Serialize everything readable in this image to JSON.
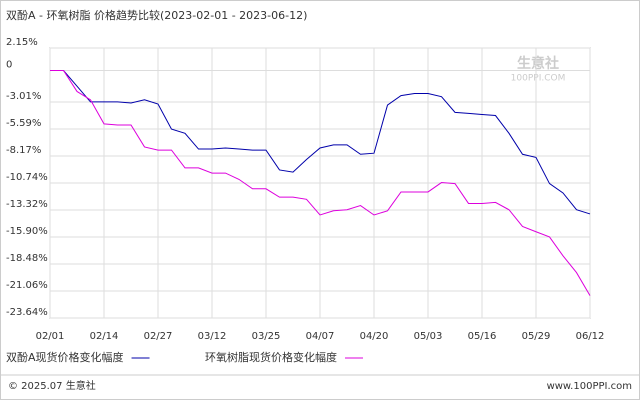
{
  "chart_data": {
    "type": "line",
    "title": "双酚A - 环氧树脂 价格趋势比较(2023-02-01 - 2023-06-12)",
    "categories": [
      "02/01",
      null,
      null,
      null,
      "02/14",
      null,
      null,
      null,
      "02/27",
      null,
      null,
      null,
      "03/12",
      null,
      null,
      null,
      "03/25",
      null,
      null,
      null,
      "04/07",
      null,
      null,
      null,
      "04/20",
      null,
      null,
      null,
      "05/03",
      null,
      null,
      null,
      "05/16",
      null,
      null,
      null,
      "05/29",
      null,
      null,
      null,
      "06/12"
    ],
    "series": [
      {
        "name": "双酚A现货价格变化幅度",
        "color": "#0000aa",
        "values": [
          0,
          0,
          -1.5,
          -3.0,
          -3.0,
          -3.0,
          -3.1,
          -2.8,
          -3.2,
          -5.6,
          -6.0,
          -7.5,
          -7.5,
          -7.4,
          -7.5,
          -7.6,
          -7.6,
          -9.5,
          -9.7,
          -8.5,
          -7.4,
          -7.1,
          -7.1,
          -8.0,
          -7.9,
          -3.3,
          -2.4,
          -2.2,
          -2.2,
          -2.5,
          -4.0,
          -4.1,
          -4.2,
          -4.3,
          -6.0,
          -8.0,
          -8.3,
          -10.8,
          -11.7,
          -13.3,
          -13.7
        ]
      },
      {
        "name": "环氧树脂现货价格变化幅度",
        "color": "#dd00dd",
        "values": [
          0,
          0,
          -2.0,
          -2.8,
          -5.1,
          -5.2,
          -5.2,
          -7.3,
          -7.6,
          -7.6,
          -9.3,
          -9.3,
          -9.8,
          -9.8,
          -10.4,
          -11.3,
          -11.3,
          -12.1,
          -12.1,
          -12.3,
          -13.8,
          -13.4,
          -13.3,
          -12.9,
          -13.8,
          -13.4,
          -11.6,
          -11.6,
          -11.6,
          -10.7,
          -10.8,
          -12.7,
          -12.7,
          -12.6,
          -13.3,
          -14.9,
          -15.4,
          -15.9,
          -17.7,
          -19.3,
          -21.5
        ]
      }
    ],
    "ylim": [
      -23.64,
      2.15
    ],
    "yticks": [
      {
        "value": 2.15,
        "label": "2.15%"
      },
      0,
      {
        "value": -3.01,
        "label": "-3.01%"
      },
      {
        "value": -5.59,
        "label": "-5.59%"
      },
      {
        "value": -8.17,
        "label": "-8.17%"
      },
      {
        "value": -10.74,
        "label": "-10.74%"
      },
      {
        "value": -13.32,
        "label": "-13.32%"
      },
      {
        "value": -15.9,
        "label": "-15.90%"
      },
      {
        "value": -18.48,
        "label": "-18.48%"
      },
      {
        "value": -21.06,
        "label": "-21.06%"
      },
      {
        "value": -23.64,
        "label": "-23.64%"
      }
    ],
    "grid": true,
    "watermark": [
      "生意社",
      "100PPI.COM"
    ],
    "footer_left": "© 2025.07 生意社",
    "footer_right": "www.100PPI.com"
  }
}
